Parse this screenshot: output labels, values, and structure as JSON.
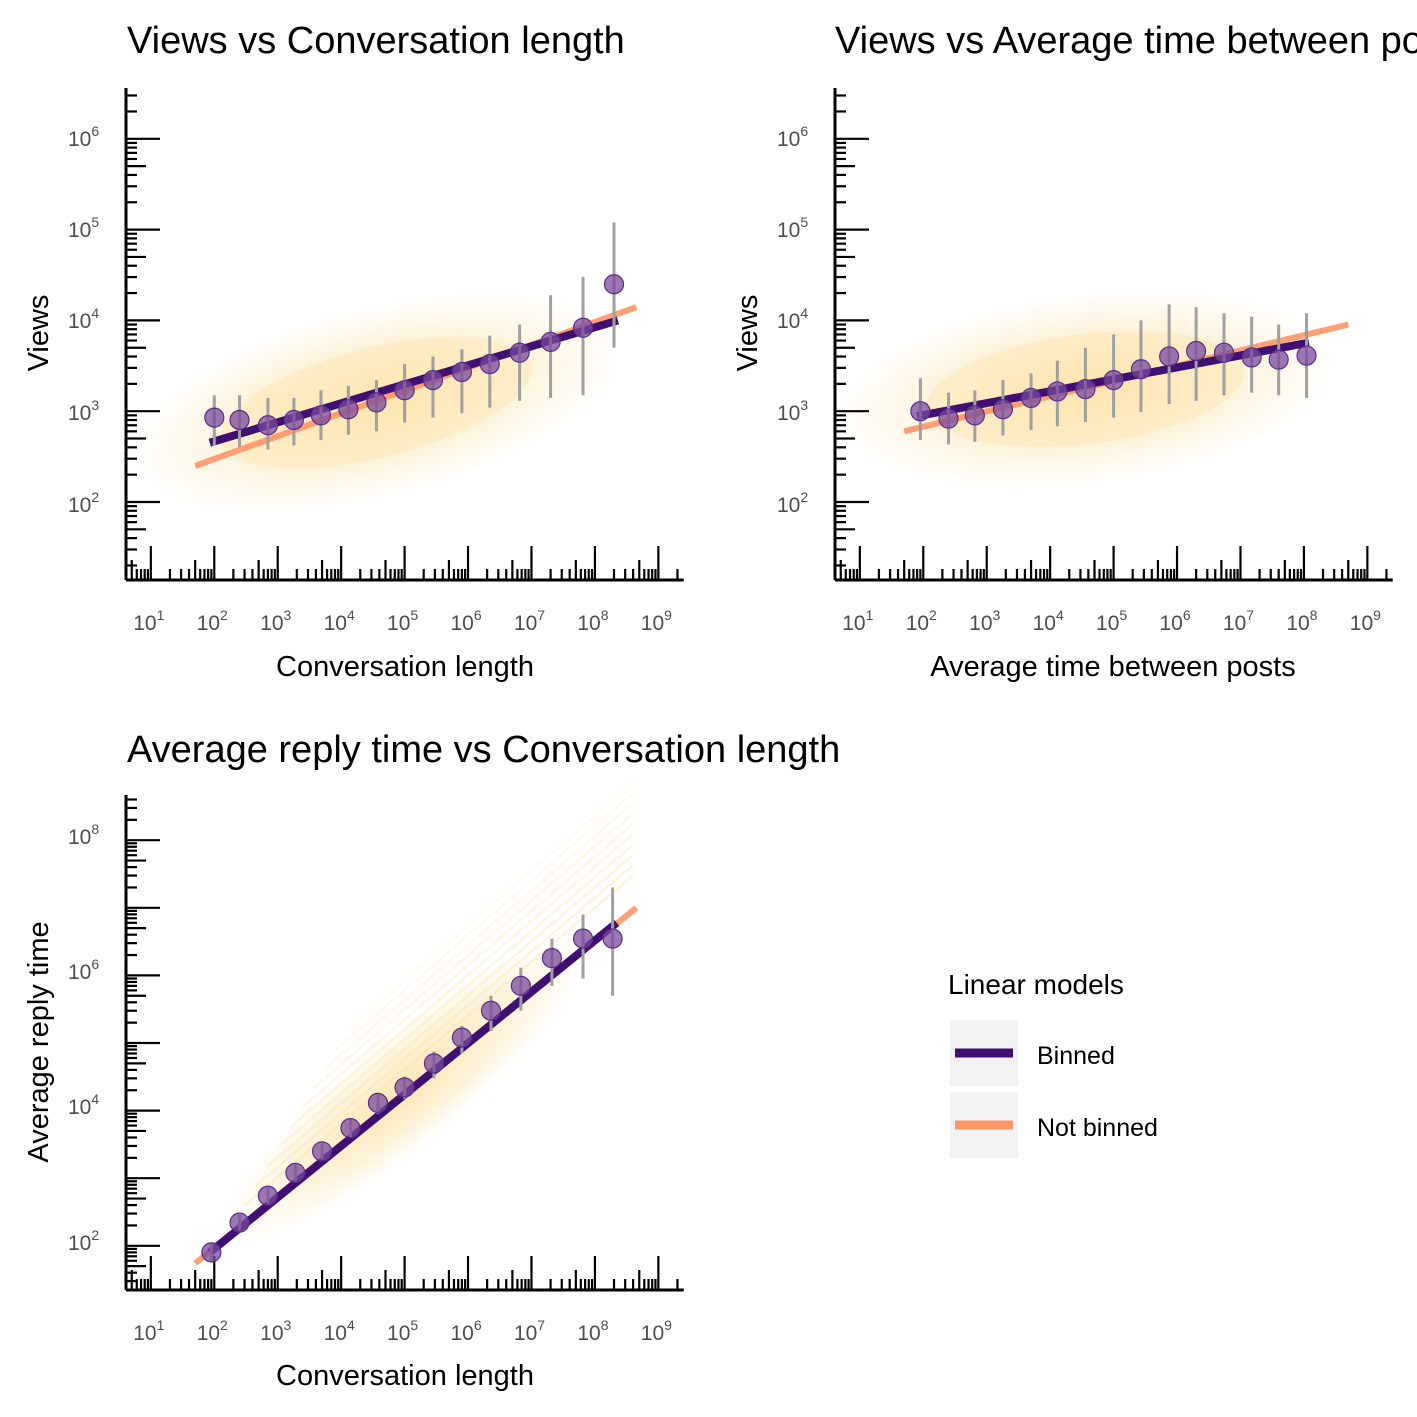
{
  "chart_data": [
    {
      "type": "scatter",
      "title": "Views vs Conversation length",
      "xlabel": "Conversation length",
      "ylabel": "Views",
      "x_scale": "log10",
      "y_scale": "log10",
      "xlim": [
        3,
        2000000000
      ],
      "ylim": [
        15,
        5000000
      ],
      "x_tick_labels": [
        "10",
        "10",
        "10",
        "10",
        "10",
        "10",
        "10",
        "10",
        "10"
      ],
      "x_tick_exponents": [
        "1",
        "2",
        "3",
        "4",
        "5",
        "6",
        "7",
        "8",
        "9"
      ],
      "y_tick_labels": [
        "10",
        "10",
        "10",
        "10",
        "10"
      ],
      "y_tick_exponents": [
        "2",
        "3",
        "4",
        "5",
        "6"
      ],
      "grid": false,
      "binned_points": {
        "x": [
          100,
          250,
          700,
          1800,
          4800,
          13000,
          36000,
          100000,
          280000,
          800000,
          2200000,
          6500000,
          20000000,
          65000000,
          200000000
        ],
        "y": [
          850,
          800,
          700,
          800,
          900,
          1050,
          1250,
          1700,
          2200,
          2700,
          3300,
          4400,
          5800,
          8300,
          25000
        ],
        "y_low": [
          420,
          400,
          380,
          420,
          480,
          550,
          600,
          750,
          850,
          950,
          1100,
          1300,
          1400,
          1500,
          5000
        ],
        "y_high": [
          1500,
          1500,
          1400,
          1400,
          1700,
          1900,
          2200,
          3300,
          4000,
          4800,
          6800,
          9000,
          19000,
          30000,
          120000
        ]
      },
      "fit_binned": {
        "x": [
          85,
          230000000
        ],
        "y": [
          450,
          10000
        ]
      },
      "fit_not_binned": {
        "x": [
          50,
          450000000
        ],
        "y": [
          250,
          14000
        ]
      }
    },
    {
      "type": "scatter",
      "title": "Views vs Average time between posts",
      "xlabel": "Average time between posts",
      "ylabel": "Views",
      "x_scale": "log10",
      "y_scale": "log10",
      "xlim": [
        3,
        2000000000
      ],
      "ylim": [
        15,
        5000000
      ],
      "x_tick_labels": [
        "10",
        "10",
        "10",
        "10",
        "10",
        "10",
        "10",
        "10",
        "10"
      ],
      "x_tick_exponents": [
        "1",
        "2",
        "3",
        "4",
        "5",
        "6",
        "7",
        "8",
        "9"
      ],
      "y_tick_labels": [
        "10",
        "10",
        "10",
        "10",
        "10"
      ],
      "y_tick_exponents": [
        "2",
        "3",
        "4",
        "5",
        "6"
      ],
      "grid": false,
      "binned_points": {
        "x": [
          90,
          250,
          650,
          1800,
          5000,
          13000,
          36000,
          100000,
          270000,
          750000,
          2000000,
          5500000,
          15000000,
          40000000,
          110000000
        ],
        "y": [
          1000,
          830,
          900,
          1050,
          1400,
          1650,
          1750,
          2200,
          2900,
          4000,
          4600,
          4400,
          3900,
          3700,
          4100
        ],
        "y_low": [
          480,
          430,
          460,
          540,
          620,
          680,
          760,
          850,
          980,
          1200,
          1300,
          1500,
          1600,
          1500,
          1400
        ],
        "y_high": [
          2300,
          1600,
          1700,
          2200,
          2600,
          3600,
          5000,
          7000,
          10000,
          15000,
          14000,
          12000,
          11000,
          9000,
          12000
        ]
      },
      "fit_binned": {
        "x": [
          80,
          120000000
        ],
        "y": [
          880,
          5700
        ]
      },
      "fit_not_binned": {
        "x": [
          50,
          500000000
        ],
        "y": [
          600,
          9000
        ]
      }
    },
    {
      "type": "scatter",
      "title": "Average reply time vs Conversation length",
      "xlabel": "Conversation length",
      "ylabel": "Average reply time",
      "x_scale": "log10",
      "y_scale": "log10",
      "xlim": [
        3,
        2000000000
      ],
      "ylim": [
        15,
        500000000
      ],
      "x_tick_labels": [
        "10",
        "10",
        "10",
        "10",
        "10",
        "10",
        "10",
        "10",
        "10"
      ],
      "x_tick_exponents": [
        "1",
        "2",
        "3",
        "4",
        "5",
        "6",
        "7",
        "8",
        "9"
      ],
      "y_tick_labels": [
        "10",
        "10",
        "10",
        "10"
      ],
      "y_tick_exponents": [
        "2",
        "4",
        "6",
        "8"
      ],
      "grid": false,
      "binned_points": {
        "x": [
          90,
          250,
          700,
          1900,
          5000,
          14000,
          38000,
          100000,
          290000,
          800000,
          2300000,
          6800000,
          21000000,
          65000000,
          190000000
        ],
        "y": [
          80,
          220,
          550,
          1200,
          2500,
          5500,
          13000,
          22000,
          50000,
          120000,
          300000,
          700000,
          1800000,
          3500000,
          3500000
        ],
        "y_low": [
          60,
          170,
          420,
          900,
          1900,
          4000,
          9000,
          15000,
          30000,
          70000,
          150000,
          300000,
          700000,
          900000,
          500000
        ],
        "y_high": [
          110,
          290,
          720,
          1600,
          3300,
          7500,
          18000,
          32000,
          75000,
          180000,
          500000,
          1300000,
          3500000,
          8000000,
          20000000
        ]
      },
      "fit_binned": {
        "x": [
          85,
          220000000
        ],
        "y": [
          80,
          6000000
        ]
      },
      "fit_not_binned": {
        "x": [
          50,
          450000000
        ],
        "y": [
          55,
          10000000
        ]
      }
    }
  ],
  "legend": {
    "title": "Linear models",
    "entries": [
      {
        "label": "Binned",
        "color": "#3f0f72"
      },
      {
        "label": "Not binned",
        "color": "#fd9668"
      }
    ]
  },
  "colors": {
    "scatter": "#fde2a6",
    "points": "#7a4a9e",
    "errorbars": "#a0a0a0",
    "binned_line": "#3f0f72",
    "not_binned_line": "#fd9668"
  }
}
